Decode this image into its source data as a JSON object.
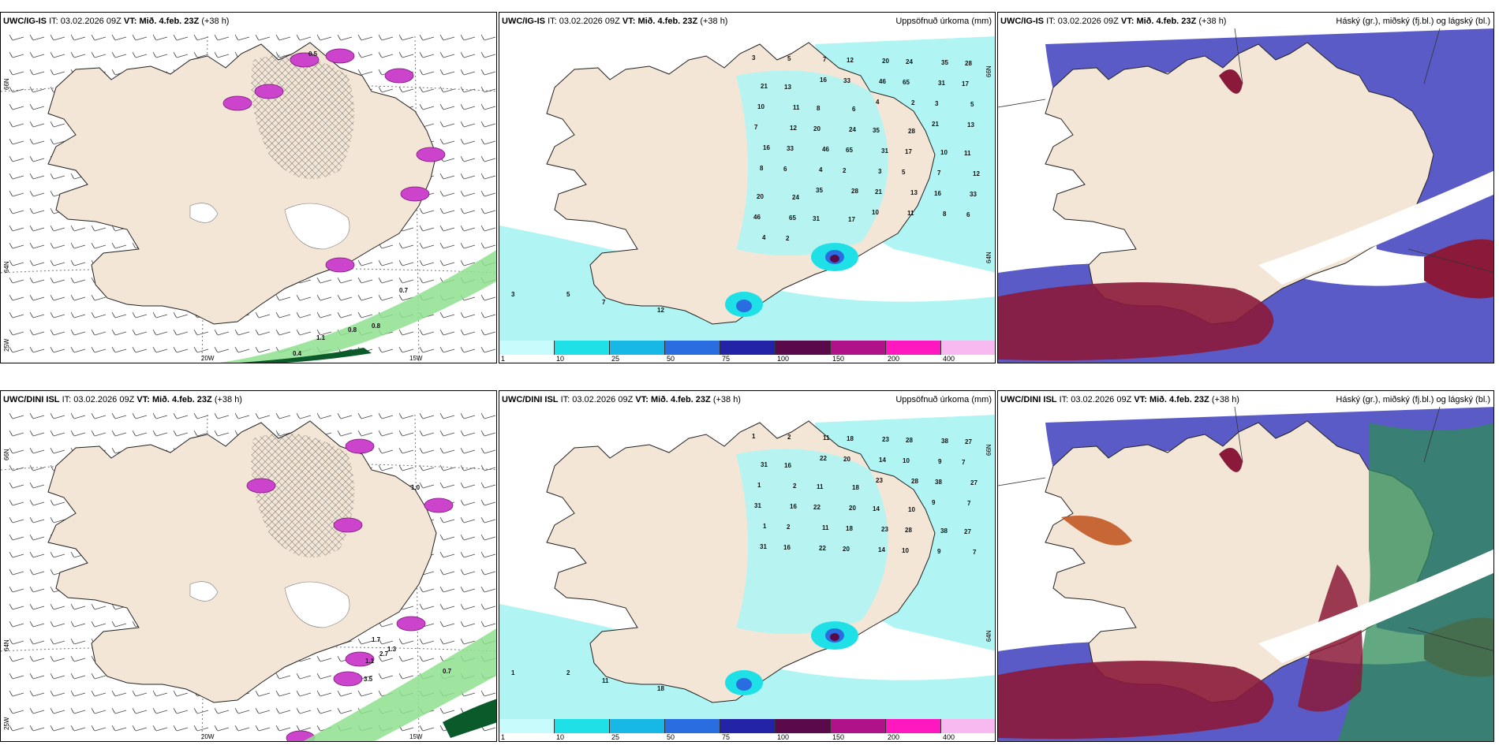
{
  "colors": {
    "land": "#f3e6d6",
    "sea_precip": "#b0f4f4",
    "ice_white": "#ffffff",
    "low_cloud": "#5b5bc8",
    "high_cloud": "#8b1a3a",
    "mid_cloud": "#2e8b57"
  },
  "panels": {
    "p1": {
      "model": "UWC/IG-IS",
      "it_label": "IT:",
      "it_value": "03.02.2026 09Z",
      "vt_label": "VT:",
      "vt_value": "Mið. 4.feb. 23Z",
      "lead": "(+38 h)",
      "lat_top": "66N",
      "lat_bottom": "64N",
      "lon_left": "25W",
      "lon_mid": "20W",
      "lon_right": "15W",
      "values": [
        "0.5",
        "0.8",
        "0.7",
        "0.8",
        "1.1",
        "0.4"
      ]
    },
    "p2": {
      "model": "UWC/IG-IS",
      "it_label": "IT:",
      "it_value": "03.02.2026 09Z",
      "vt_label": "VT:",
      "vt_value": "Mið. 4.feb. 23Z",
      "lead": "(+38 h)",
      "right_title": "Uppsöfnuð úrkoma (mm)",
      "lat_top": "66N",
      "lat_bottom": "64N",
      "values": [
        "3",
        "5",
        "7",
        "12",
        "20",
        "24",
        "35",
        "28",
        "21",
        "13",
        "16",
        "33",
        "46",
        "65",
        "31",
        "17",
        "10",
        "11",
        "8",
        "6",
        "4",
        "2"
      ]
    },
    "p3": {
      "model": "UWC/IG-IS",
      "it_label": "IT:",
      "it_value": "03.02.2026 09Z",
      "vt_label": "VT:",
      "vt_value": "Mið. 4.feb. 23Z",
      "lead": "(+38 h)",
      "right_title": "Háský (gr.), miðský (fj.bl.) og lágský (bl.)"
    },
    "p4": {
      "model": "UWC/DINI ISL",
      "it_label": "IT:",
      "it_value": "03.02.2026 09Z",
      "vt_label": "VT:",
      "vt_value": "Mið. 4.feb. 23Z",
      "lead": "(+38 h)",
      "lat_top": "66N",
      "lat_bottom": "64N",
      "lon_left": "25W",
      "lon_mid": "20W",
      "lon_right": "15W",
      "values": [
        "1.0",
        "0.7",
        "1.1",
        "1.3",
        "2.7",
        "3.5",
        "1.7"
      ]
    },
    "p5": {
      "model": "UWC/DINI ISL",
      "it_label": "IT:",
      "it_value": "03.02.2026 09Z",
      "vt_label": "VT:",
      "vt_value": "Mið. 4.feb. 23Z",
      "lead": "(+38 h)",
      "right_title": "Uppsöfnuð úrkoma (mm)",
      "lat_top": "66N",
      "lat_bottom": "64N",
      "values": [
        "1",
        "2",
        "11",
        "18",
        "23",
        "28",
        "38",
        "27",
        "31",
        "16",
        "22",
        "20",
        "14",
        "10",
        "9",
        "7"
      ]
    },
    "p6": {
      "model": "UWC/DINI ISL",
      "it_label": "IT:",
      "it_value": "03.02.2026 09Z",
      "vt_label": "VT:",
      "vt_value": "Mið. 4.feb. 23Z",
      "lead": "(+38 h)",
      "right_title": "Háský (gr.), miðský (fj.bl.) og lágský (bl.)"
    }
  },
  "colorbar": {
    "labels": [
      "1",
      "10",
      "25",
      "50",
      "75",
      "100",
      "150",
      "200",
      "400"
    ],
    "colors": [
      "#c8fbfb",
      "#1ee0e6",
      "#18b8e6",
      "#2a6de0",
      "#2323a8",
      "#5a0a4a",
      "#b0128a",
      "#ff18c0",
      "#f8b8f0"
    ]
  }
}
